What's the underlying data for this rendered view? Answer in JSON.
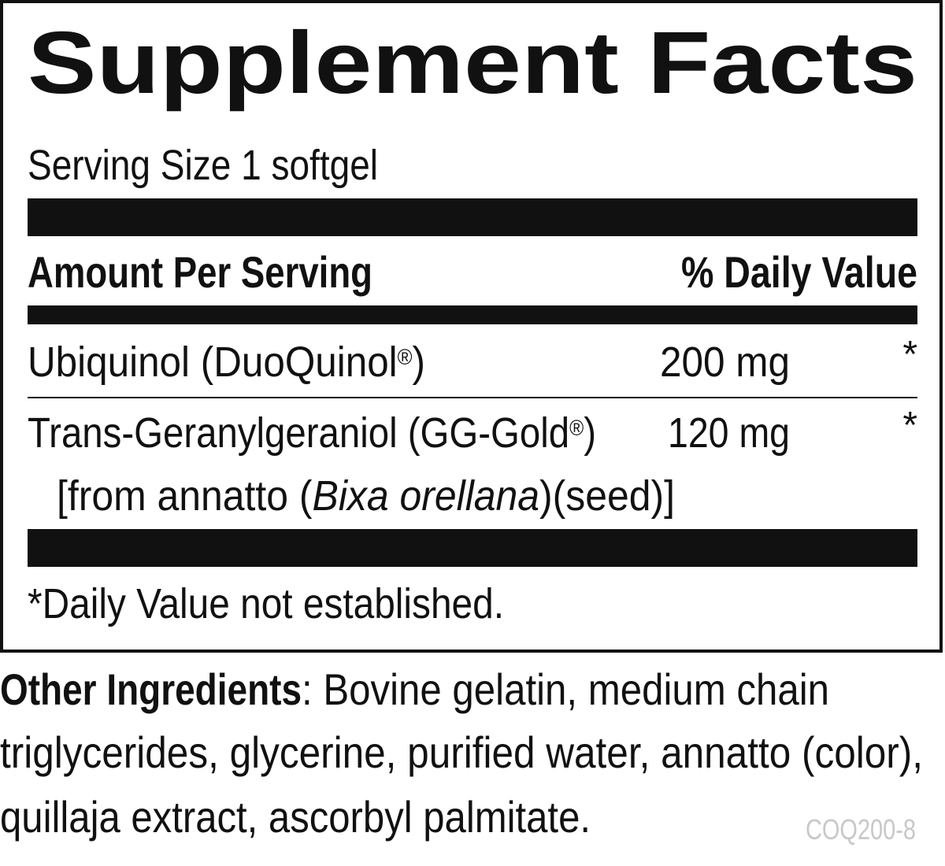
{
  "title": "Supplement Facts",
  "serving_size": "Serving Size 1 softgel",
  "header": {
    "amount": "Amount Per Serving",
    "daily_value": "% Daily Value"
  },
  "rows": [
    {
      "name": [
        "Ubiquinol (DuoQuinol",
        "®",
        ")"
      ],
      "amount": "200 mg",
      "daily_value": "*"
    },
    {
      "name": [
        "Trans-Geranylgeraniol (GG-Gold",
        "®",
        ")"
      ],
      "source": [
        "[from annatto (",
        "Bixa orellana",
        ")(seed)]"
      ],
      "amount": "120 mg",
      "daily_value": "*"
    }
  ],
  "footnote": "*Daily Value not established.",
  "other_ingredients": {
    "label": "Other Ingredients",
    "lines": [
      ": Bovine gelatin, medium chain",
      "triglycerides, glycerine, purified water, annatto (color),",
      "quillaja extract, ascorbyl palmitate."
    ]
  },
  "code": "COQ200-8"
}
